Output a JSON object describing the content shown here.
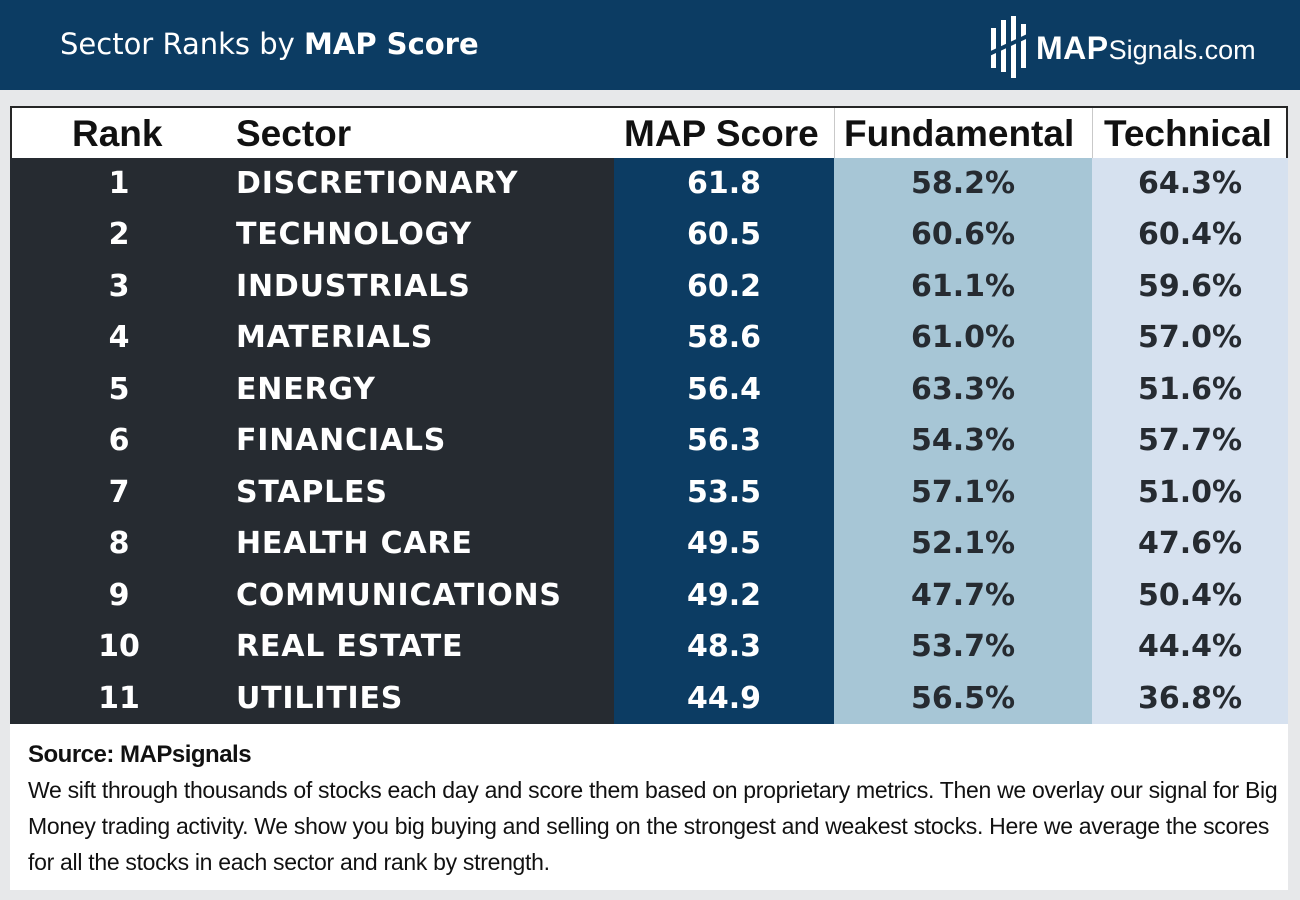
{
  "header": {
    "title_prefix": "Sector Ranks by",
    "title_bold": "MAP Score",
    "logo_bold": "MAP",
    "logo_rest": "Signals.com"
  },
  "colors": {
    "header_bg": "#0c3c63",
    "rank_sector_bg": "#262b31",
    "map_score_bg": "#0c3c63",
    "fundamental_bg": "#a7c6d6",
    "technical_bg": "#d6e1ef"
  },
  "chart_data": {
    "type": "table",
    "title": "Sector Ranks by MAP Score",
    "columns": [
      "Rank",
      "Sector",
      "MAP Score",
      "Fundamental",
      "Technical"
    ],
    "rows": [
      {
        "rank": "1",
        "sector": "DISCRETIONARY",
        "map_score": "61.8",
        "fundamental": "58.2%",
        "technical": "64.3%"
      },
      {
        "rank": "2",
        "sector": "TECHNOLOGY",
        "map_score": "60.5",
        "fundamental": "60.6%",
        "technical": "60.4%"
      },
      {
        "rank": "3",
        "sector": "INDUSTRIALS",
        "map_score": "60.2",
        "fundamental": "61.1%",
        "technical": "59.6%"
      },
      {
        "rank": "4",
        "sector": "MATERIALS",
        "map_score": "58.6",
        "fundamental": "61.0%",
        "technical": "57.0%"
      },
      {
        "rank": "5",
        "sector": "ENERGY",
        "map_score": "56.4",
        "fundamental": "63.3%",
        "technical": "51.6%"
      },
      {
        "rank": "6",
        "sector": "FINANCIALS",
        "map_score": "56.3",
        "fundamental": "54.3%",
        "technical": "57.7%"
      },
      {
        "rank": "7",
        "sector": "STAPLES",
        "map_score": "53.5",
        "fundamental": "57.1%",
        "technical": "51.0%"
      },
      {
        "rank": "8",
        "sector": "HEALTH CARE",
        "map_score": "49.5",
        "fundamental": "52.1%",
        "technical": "47.6%"
      },
      {
        "rank": "9",
        "sector": "COMMUNICATIONS",
        "map_score": "49.2",
        "fundamental": "47.7%",
        "technical": "50.4%"
      },
      {
        "rank": "10",
        "sector": "REAL ESTATE",
        "map_score": "48.3",
        "fundamental": "53.7%",
        "technical": "44.4%"
      },
      {
        "rank": "11",
        "sector": "UTILITIES",
        "map_score": "44.9",
        "fundamental": "56.5%",
        "technical": "36.8%"
      }
    ]
  },
  "footer": {
    "source": "Source: MAPsignals",
    "description": "We sift through thousands of stocks each day and score them based on proprietary metrics. Then we overlay our signal for Big Money trading activity. We show you big buying and selling on the strongest and weakest stocks. Here we average the scores for all the stocks in each sector and rank by strength."
  }
}
